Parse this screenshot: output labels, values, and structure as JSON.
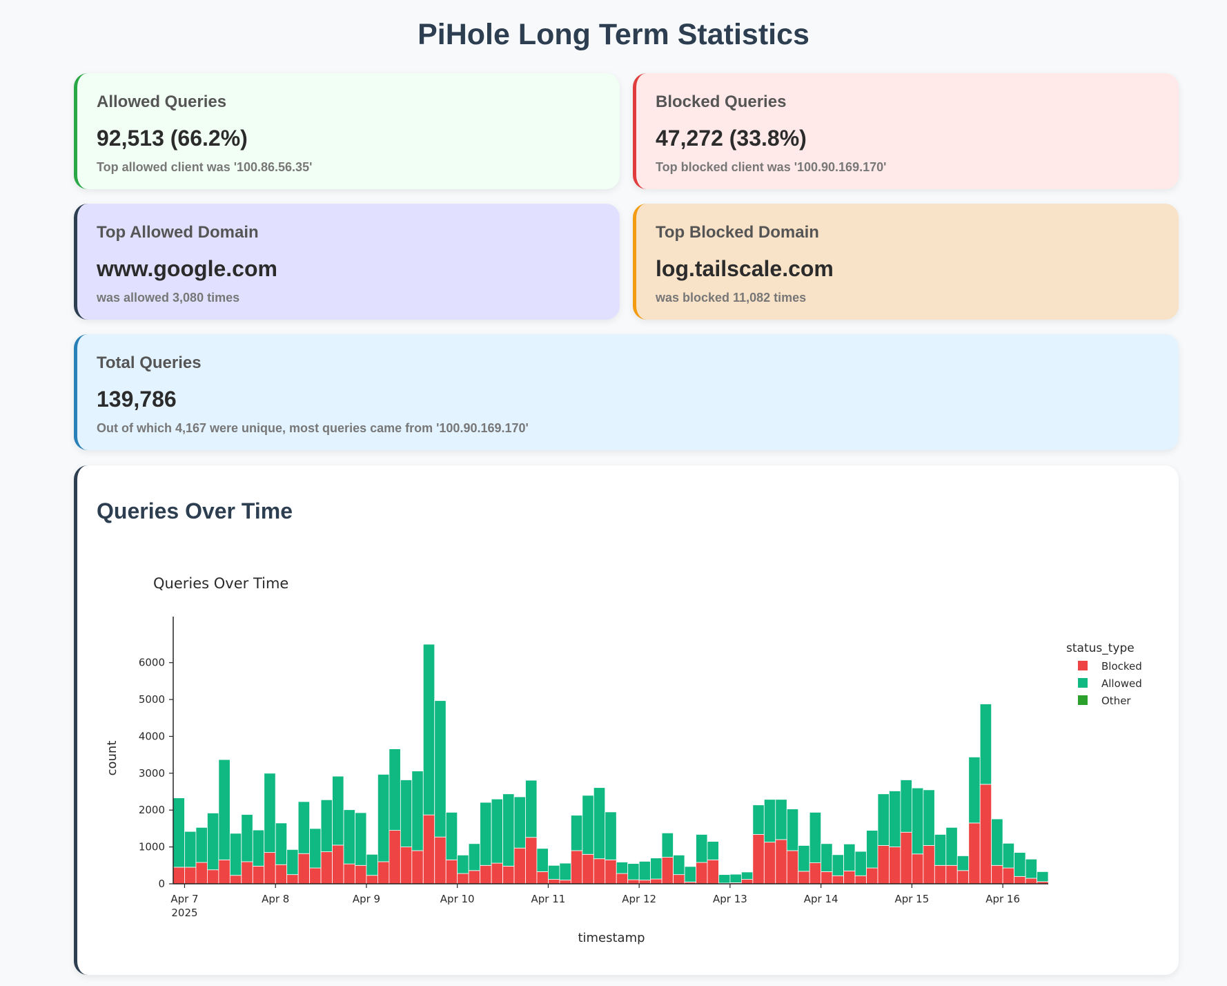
{
  "page": {
    "title": "PiHole Long Term Statistics"
  },
  "cards": {
    "allowed": {
      "label": "Allowed Queries",
      "value": "92,513 (66.2%)",
      "sub": "Top allowed client was '100.86.56.35'"
    },
    "blocked": {
      "label": "Blocked Queries",
      "value": "47,272 (33.8%)",
      "sub": "Top blocked client was '100.90.169.170'"
    },
    "top_allowed_domain": {
      "label": "Top Allowed Domain",
      "value": "www.google.com",
      "sub": "was allowed 3,080 times"
    },
    "top_blocked_domain": {
      "label": "Top Blocked Domain",
      "value": "log.tailscale.com",
      "sub": "was blocked 11,082 times"
    },
    "total": {
      "label": "Total Queries",
      "value": "139,786",
      "sub": "Out of which 4,167 were unique, most queries came from '100.90.169.170'"
    }
  },
  "chart_section": {
    "title": "Queries Over Time"
  },
  "colors": {
    "blocked": "#ef4444",
    "allowed": "#10b981",
    "other": "#2ca02c"
  },
  "chart_data": {
    "type": "bar",
    "barmode": "stack",
    "title": "Queries Over Time",
    "xlabel": "timestamp",
    "ylabel": "count",
    "ylim": [
      0,
      6800
    ],
    "yticks": [
      0,
      1000,
      2000,
      3000,
      4000,
      5000,
      6000
    ],
    "xticks": [
      "Apr 7",
      "Apr 8",
      "Apr 9",
      "Apr 10",
      "Apr 11",
      "Apr 12",
      "Apr 13",
      "Apr 14",
      "Apr 15",
      "Apr 16"
    ],
    "xtick_year": "2025",
    "legend": {
      "title": "status_type",
      "position": "top-right",
      "items": [
        "Blocked",
        "Allowed",
        "Other"
      ]
    },
    "bin_hours": 3,
    "start": "2025-04-06 21:00",
    "series": [
      {
        "name": "Blocked",
        "values": [
          450,
          450,
          580,
          380,
          650,
          230,
          600,
          480,
          850,
          520,
          250,
          820,
          430,
          870,
          1050,
          540,
          500,
          230,
          600,
          1450,
          1000,
          900,
          1870,
          1270,
          650,
          280,
          360,
          500,
          560,
          480,
          970,
          1260,
          330,
          120,
          100,
          900,
          800,
          680,
          650,
          280,
          110,
          100,
          130,
          720,
          250,
          50,
          580,
          650,
          20,
          30,
          120,
          1340,
          1130,
          1200,
          900,
          340,
          570,
          330,
          220,
          350,
          220,
          430,
          1040,
          1000,
          1400,
          810,
          1040,
          500,
          500,
          360,
          1650,
          2700,
          500,
          430,
          200,
          150,
          60
        ]
      },
      {
        "name": "Allowed",
        "values": [
          1880,
          970,
          950,
          1540,
          2720,
          1140,
          1280,
          980,
          2150,
          1130,
          680,
          1410,
          1070,
          1410,
          1870,
          1470,
          1430,
          570,
          2370,
          2210,
          1820,
          2160,
          4630,
          3700,
          1290,
          500,
          730,
          1710,
          1740,
          1960,
          1390,
          1550,
          630,
          380,
          460,
          960,
          1600,
          1930,
          1300,
          310,
          440,
          510,
          570,
          660,
          530,
          420,
          760,
          500,
          230,
          230,
          200,
          800,
          1160,
          1090,
          1130,
          700,
          1370,
          760,
          570,
          730,
          660,
          1020,
          1400,
          1520,
          1420,
          1790,
          1510,
          840,
          1030,
          400,
          1790,
          2180,
          1260,
          670,
          650,
          520,
          270
        ]
      },
      {
        "name": "Other",
        "values": []
      }
    ]
  }
}
